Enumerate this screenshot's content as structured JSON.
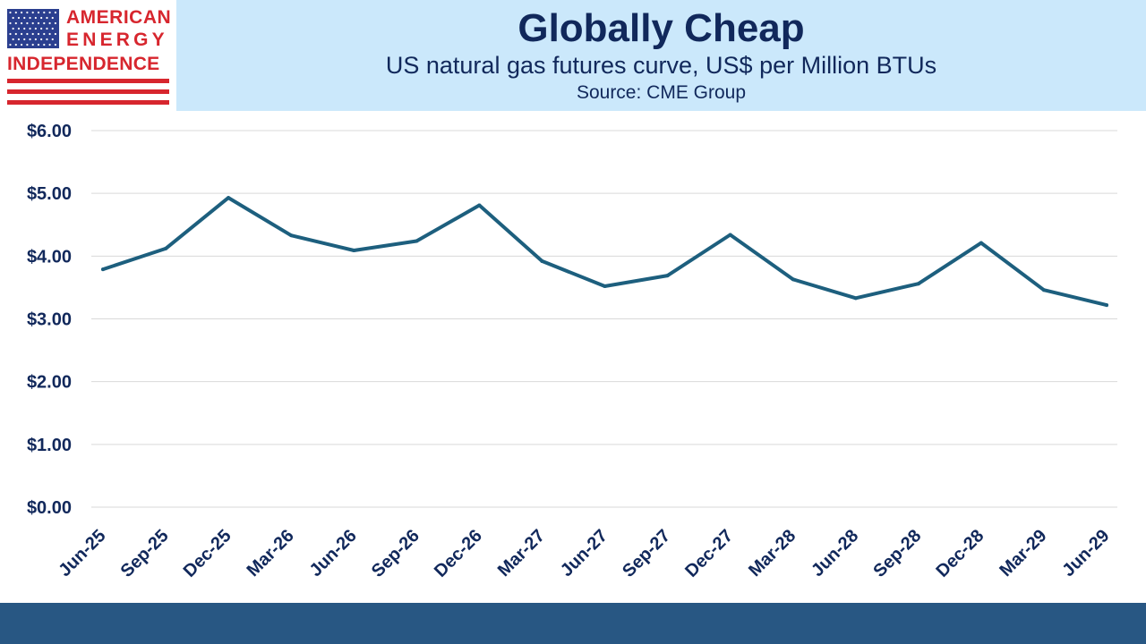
{
  "logo": {
    "line1": "AMERICAN",
    "line2": "ENERGY",
    "line3": "INDEPENDENCE"
  },
  "header": {
    "title": "Globally Cheap",
    "subtitle": "US natural gas futures curve, US$ per Million BTUs",
    "source": "Source: CME Group"
  },
  "colors": {
    "line": "#1d5f7e",
    "title_bg": "#cbe8fb",
    "footer": "#285783",
    "text": "#11285b",
    "logo_red": "#d7262e",
    "logo_blue": "#2b3f8f"
  },
  "chart_data": {
    "type": "line",
    "categories": [
      "Jun-25",
      "Sep-25",
      "Dec-25",
      "Mar-26",
      "Jun-26",
      "Sep-26",
      "Dec-26",
      "Mar-27",
      "Jun-27",
      "Sep-27",
      "Dec-27",
      "Mar-28",
      "Jun-28",
      "Sep-28",
      "Dec-28",
      "Mar-29",
      "Jun-29"
    ],
    "series": [
      {
        "values": [
          3.79,
          4.12,
          4.93,
          4.33,
          4.09,
          4.24,
          4.81,
          3.92,
          3.52,
          3.69,
          4.34,
          3.63,
          3.33,
          3.56,
          4.21,
          3.46,
          3.22
        ]
      }
    ],
    "ylim": [
      0,
      6
    ],
    "yticks": [
      0,
      1,
      2,
      3,
      4,
      5,
      6
    ],
    "ytick_labels": [
      "$0.00",
      "$1.00",
      "$2.00",
      "$3.00",
      "$4.00",
      "$5.00",
      "$6.00"
    ],
    "grid": true,
    "xlabel": "",
    "ylabel": ""
  }
}
